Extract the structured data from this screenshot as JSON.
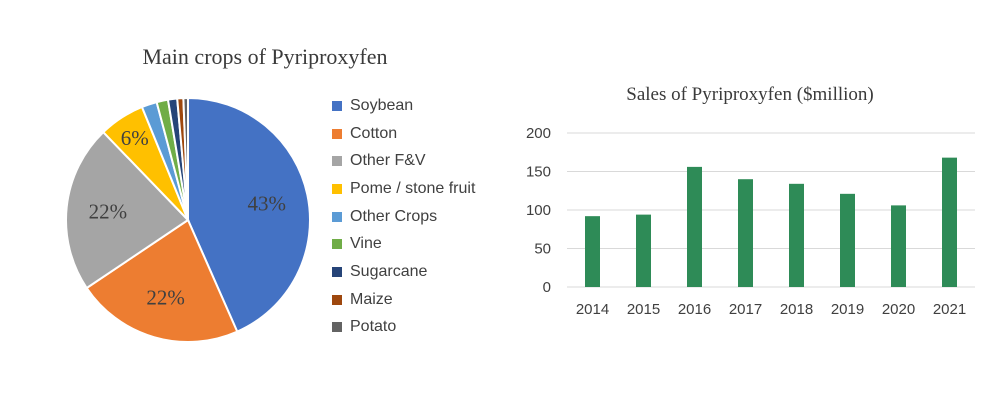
{
  "chart_data": [
    {
      "type": "pie",
      "title": "Main crops of Pyriproxyfen",
      "slices": [
        {
          "label": "Soybean",
          "value": 43,
          "display": "43%",
          "color": "#4472C4"
        },
        {
          "label": "Cotton",
          "value": 22,
          "display": "22%",
          "color": "#ED7D31"
        },
        {
          "label": "Other F&V",
          "value": 22,
          "display": "22%",
          "color": "#A5A5A5"
        },
        {
          "label": "Pome / stone fruit",
          "value": 6,
          "display": "6%",
          "color": "#FFC000"
        },
        {
          "label": "Other Crops",
          "value": 2,
          "display": "",
          "color": "#5B9BD5"
        },
        {
          "label": "Vine",
          "value": 1.5,
          "display": "",
          "color": "#70AD47"
        },
        {
          "label": "Sugarcane",
          "value": 1.2,
          "display": "",
          "color": "#264478"
        },
        {
          "label": "Maize",
          "value": 0.8,
          "display": "",
          "color": "#9E480E"
        },
        {
          "label": "Potato",
          "value": 0.6,
          "display": "",
          "color": "#636363"
        }
      ],
      "legend_position": "right"
    },
    {
      "type": "bar",
      "title": "Sales of Pyriproxyfen ($million)",
      "categories": [
        "2014",
        "2015",
        "2016",
        "2017",
        "2018",
        "2019",
        "2020",
        "2021"
      ],
      "values": [
        92,
        94,
        156,
        140,
        134,
        121,
        106,
        168
      ],
      "ylim": [
        0,
        200
      ],
      "yticks": [
        0,
        50,
        100,
        150,
        200
      ],
      "grid": true,
      "color": "#2E8B57"
    }
  ]
}
